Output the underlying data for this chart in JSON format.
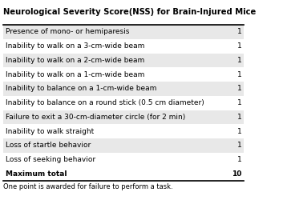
{
  "title": "Neurological Severity Score(NSS) for Brain-Injured Mice",
  "rows": [
    [
      "Presence of mono- or hemiparesis",
      "1"
    ],
    [
      "Inability to walk on a 3-cm-wide beam",
      "1"
    ],
    [
      "Inability to walk on a 2-cm-wide beam",
      "1"
    ],
    [
      "Inability to walk on a 1-cm-wide beam",
      "1"
    ],
    [
      "Inability to balance on a 1-cm-wide beam",
      "1"
    ],
    [
      "Inability to balance on a round stick (0.5 cm diameter)",
      "1"
    ],
    [
      "Failure to exit a 30-cm-diameter circle (for 2 min)",
      "1"
    ],
    [
      "Inability to walk straight",
      "1"
    ],
    [
      "Loss of startle behavior",
      "1"
    ],
    [
      "Loss of seeking behavior",
      "1"
    ],
    [
      "Maximum total",
      "10"
    ]
  ],
  "footer": "One point is awarded for failure to perform a task.",
  "shaded_rows": [
    0,
    2,
    4,
    6,
    8
  ],
  "bold_rows": [
    10
  ],
  "shaded_color": "#e8e8e8",
  "title_fontsize": 7.2,
  "cell_fontsize": 6.5,
  "footer_fontsize": 6.0
}
